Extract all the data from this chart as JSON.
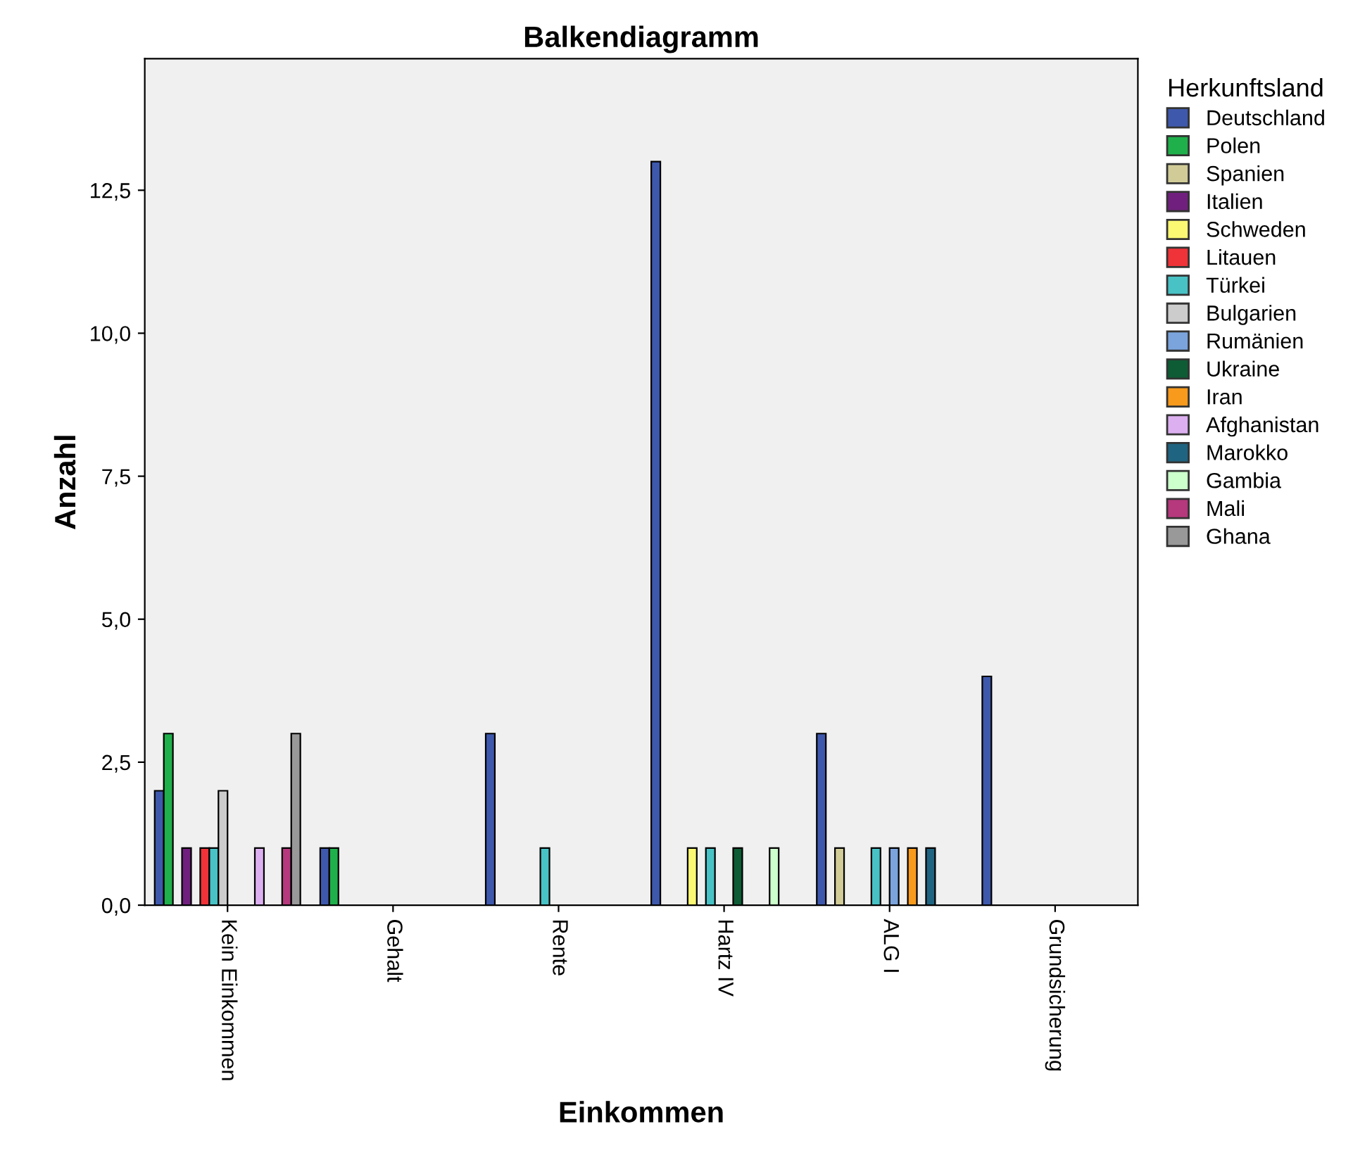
{
  "chart_data": {
    "type": "bar",
    "title": "Balkendiagramm",
    "xlabel": "Einkommen",
    "ylabel": "Anzahl",
    "legend_title": "Herkunftsland",
    "categories": [
      "Kein Einkommen",
      "Gehalt",
      "Rente",
      "Hartz IV",
      "ALG I",
      "Grundsicherung"
    ],
    "series": [
      {
        "name": "Deutschland",
        "color": "#3e58ac",
        "values": [
          2,
          1,
          3,
          13,
          3,
          4
        ]
      },
      {
        "name": "Polen",
        "color": "#1fb04b",
        "values": [
          3,
          1,
          null,
          null,
          null,
          null
        ]
      },
      {
        "name": "Spanien",
        "color": "#d1cb98",
        "values": [
          null,
          null,
          null,
          null,
          1,
          null
        ]
      },
      {
        "name": "Italien",
        "color": "#701f7e",
        "values": [
          1,
          null,
          null,
          null,
          null,
          null
        ]
      },
      {
        "name": "Schweden",
        "color": "#fbf873",
        "values": [
          null,
          null,
          null,
          1,
          null,
          null
        ]
      },
      {
        "name": "Litauen",
        "color": "#ef3338",
        "values": [
          1,
          null,
          null,
          null,
          null,
          null
        ]
      },
      {
        "name": "Türkei",
        "color": "#48c2c5",
        "values": [
          1,
          null,
          1,
          1,
          1,
          null
        ]
      },
      {
        "name": "Bulgarien",
        "color": "#cccccc",
        "values": [
          2,
          null,
          null,
          null,
          null,
          null
        ]
      },
      {
        "name": "Rumänien",
        "color": "#7ba4dd",
        "values": [
          null,
          null,
          null,
          null,
          1,
          null
        ]
      },
      {
        "name": "Ukraine",
        "color": "#0d5c35",
        "values": [
          null,
          null,
          null,
          1,
          null,
          null
        ]
      },
      {
        "name": "Iran",
        "color": "#f89a1c",
        "values": [
          null,
          null,
          null,
          null,
          1,
          null
        ]
      },
      {
        "name": "Afghanistan",
        "color": "#dcb0f0",
        "values": [
          1,
          null,
          null,
          null,
          null,
          null
        ]
      },
      {
        "name": "Marokko",
        "color": "#1f6481",
        "values": [
          null,
          null,
          null,
          null,
          1,
          null
        ]
      },
      {
        "name": "Gambia",
        "color": "#ccffcc",
        "values": [
          null,
          null,
          null,
          1,
          null,
          null
        ]
      },
      {
        "name": "Mali",
        "color": "#b6387d",
        "values": [
          1,
          null,
          null,
          null,
          null,
          null
        ]
      },
      {
        "name": "Ghana",
        "color": "#999999",
        "values": [
          3,
          null,
          null,
          null,
          null,
          null
        ]
      }
    ],
    "ylim": [
      0,
      14.8
    ],
    "yticks": [
      {
        "value": 0,
        "label": "0,0"
      },
      {
        "value": 2.5,
        "label": "2,5"
      },
      {
        "value": 5,
        "label": "5,0"
      },
      {
        "value": 7.5,
        "label": "7,5"
      },
      {
        "value": 10,
        "label": "10,0"
      },
      {
        "value": 12.5,
        "label": "12,5"
      }
    ],
    "grid": false,
    "legend": "right"
  }
}
